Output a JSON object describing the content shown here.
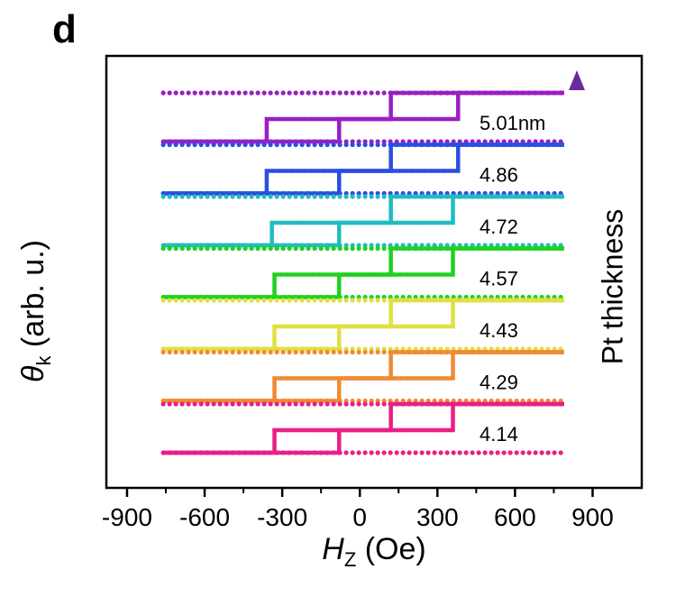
{
  "panel_label": "d",
  "chart_data": {
    "type": "line",
    "title": "",
    "panel": "d",
    "xlabel_symbol": "H",
    "xlabel_sub": "Z",
    "xlabel_unit": "(Oe)",
    "ylabel_symbol": "θ",
    "ylabel_sub": "k",
    "ylabel_unit": "(arb. u.)",
    "xlim": [
      -980,
      1090
    ],
    "xticks": [
      -900,
      -600,
      -300,
      0,
      300,
      600,
      900
    ],
    "tick_labels": [
      "-900",
      "-600",
      "-300",
      "0",
      "300",
      "600",
      "900"
    ],
    "yticks": [],
    "x_range": [
      -760,
      790
    ],
    "grid": false,
    "legend": "inline labels at right of each loop",
    "arrow_label": "Pt thickness",
    "colors": {
      "axis": "#000000",
      "arrow_bottom": "#e8197f",
      "arrow_top": "#6a2a9c"
    },
    "series": [
      {
        "name": "5.01nm",
        "color": "#9a1ec4",
        "offset": 6,
        "lower_jumps": [
          -360,
          -80
        ],
        "upper_jumps": [
          120,
          380
        ],
        "mid_up": [
          -330,
          -340
        ],
        "mid_down": [
          360,
          370
        ]
      },
      {
        "name": "4.86",
        "color": "#2a4fe0",
        "offset": 5,
        "lower_jumps": [
          -360,
          -80
        ],
        "upper_jumps": [
          120,
          380
        ],
        "mid_up": [
          -330,
          -340
        ],
        "mid_down": [
          360,
          370
        ]
      },
      {
        "name": "4.72",
        "color": "#22bcc0",
        "offset": 4,
        "lower_jumps": [
          -340,
          -80
        ],
        "upper_jumps": [
          120,
          360
        ],
        "mid_up": [
          -330,
          -340
        ],
        "mid_down": [
          350,
          360
        ]
      },
      {
        "name": "4.57",
        "color": "#1ed21e",
        "offset": 3,
        "lower_jumps": [
          -330,
          -80
        ],
        "upper_jumps": [
          120,
          360
        ],
        "mid_up": [
          -330,
          -340
        ],
        "mid_down": [
          350,
          360
        ]
      },
      {
        "name": "4.43",
        "color": "#e0e040",
        "offset": 2,
        "lower_jumps": [
          -330,
          -80
        ],
        "upper_jumps": [
          120,
          360
        ],
        "mid_up": [
          -330,
          -340
        ],
        "mid_down": [
          350,
          360
        ]
      },
      {
        "name": "4.29",
        "color": "#f08a32",
        "offset": 1,
        "lower_jumps": [
          -330,
          -80
        ],
        "upper_jumps": [
          120,
          360
        ],
        "mid_up": [
          -330,
          -340
        ],
        "mid_down": [
          350,
          360
        ]
      },
      {
        "name": "4.14",
        "color": "#ea1e88",
        "offset": 0,
        "lower_jumps": [
          -330,
          -80
        ],
        "upper_jumps": [
          120,
          360
        ],
        "mid_up": [
          -330,
          -340
        ],
        "mid_down": [
          350,
          360
        ]
      }
    ]
  }
}
